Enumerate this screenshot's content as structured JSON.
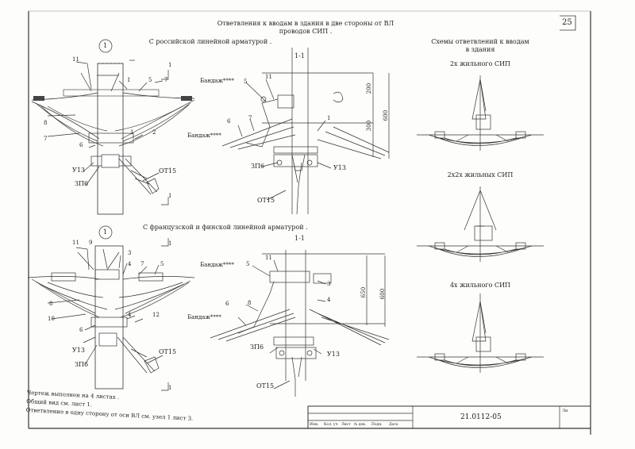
{
  "header": {
    "title_line1": "Ответвления к вводам в здания в две стороны от ВЛ",
    "title_line2": "проводов СИП .",
    "page_number": "25"
  },
  "top_section": {
    "heading": "С российской линейной арматурой .",
    "node": "1",
    "section": "1-1",
    "section_mark": "1",
    "labels": {
      "n11": "11",
      "n1a": "1",
      "n5": "5",
      "n7": "7",
      "n8": "8",
      "n7b": "7",
      "n6": "6",
      "n1b": "1",
      "n2": "2",
      "u13": "У13",
      "zp6": "ЗП6",
      "ot15": "ОТ15",
      "bandage": "Бандаж****"
    },
    "section_labels": {
      "n5": "5",
      "n11": "11",
      "n6": "6",
      "n7": "7",
      "n1": "1",
      "zp6": "ЗП6",
      "u13": "У13",
      "ot15": "ОТ15",
      "bandage": "Бандаж****",
      "dim200": "200",
      "dim300": "300",
      "dim600": "600"
    }
  },
  "bottom_section": {
    "heading": "С французской и финской линейной арматурой .",
    "node": "1",
    "section": "1-1",
    "section_mark": "1",
    "labels": {
      "n11": "11",
      "n9": "9",
      "n3": "3",
      "n4": "4",
      "n7": "7",
      "n5": "5",
      "n8": "8",
      "n10": "10",
      "n6": "6",
      "n4b": "4",
      "n12": "12",
      "u13": "У13",
      "zp6": "ЗП6",
      "ot15": "ОТ15",
      "bandage": "Бандаж****"
    },
    "section_labels": {
      "n5": "5",
      "n11": "11",
      "n3": "3",
      "n8": "8",
      "n4": "4",
      "n6": "6",
      "zp6": "ЗП6",
      "u13": "У13",
      "ot15": "ОТ15",
      "bandage": "Бандаж****",
      "dim650": "650",
      "dim600": "600"
    }
  },
  "schemes": {
    "heading_line1": "Схемы ответвлений к вводам",
    "heading_line2": "в здания",
    "scheme1": "2х жильного СИП",
    "scheme2": "2х2х жильных СИП",
    "scheme3": "4х жильного СИП"
  },
  "notes": [
    "Чертеж выполнен на 4 листах .",
    "Общий вид см. лист 1.",
    "Ответвление в одну сторону от оси ВЛ см. узел 1 лист 3."
  ],
  "title_block": {
    "code": "21.0112-05",
    "cols": [
      "Изм.",
      "Кол. уч",
      "Лист",
      "№ док.",
      "Подп.",
      "Дата"
    ],
    "sheet_label": "Ли"
  }
}
